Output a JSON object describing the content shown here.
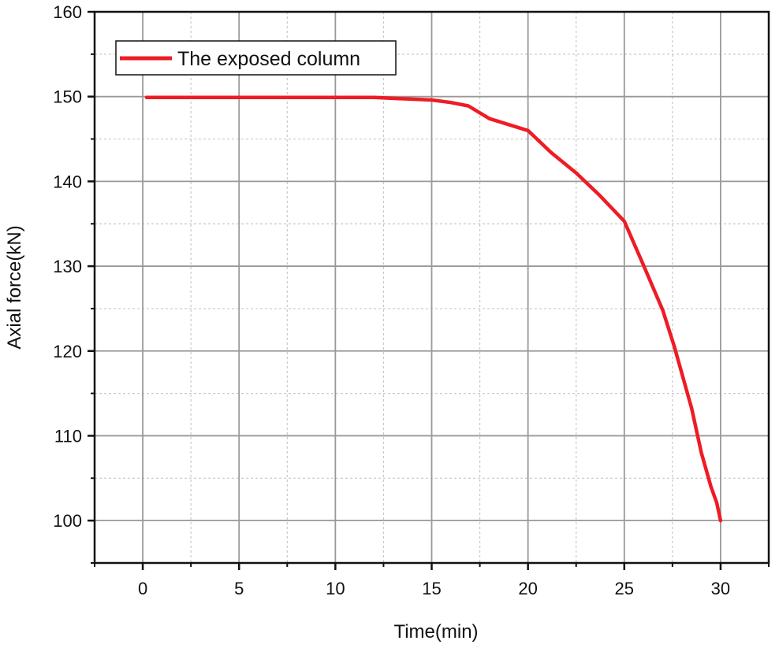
{
  "chart_data": {
    "type": "line",
    "title": "",
    "xlabel": "Time(min)",
    "ylabel": "Axial force(kN)",
    "xlim": [
      -2.5,
      32.5
    ],
    "ylim": [
      95,
      160
    ],
    "xticks": [
      0,
      5,
      10,
      15,
      20,
      25,
      30
    ],
    "yticks": [
      100,
      110,
      120,
      130,
      140,
      150,
      160
    ],
    "grid": true,
    "legend_position": "top-left",
    "series": [
      {
        "name": "The exposed column",
        "color": "#ee1c25",
        "x": [
          0.2,
          5,
          10,
          12,
          15,
          16,
          16.9,
          18,
          20,
          21.2,
          22.5,
          23.7,
          25,
          26,
          27,
          27.6,
          28.5,
          29,
          29.5,
          29.8,
          30
        ],
        "y": [
          149.9,
          149.9,
          149.9,
          149.9,
          149.6,
          149.3,
          148.9,
          147.4,
          146.0,
          143.4,
          141.0,
          138.4,
          135.3,
          130.1,
          124.8,
          120.5,
          113.2,
          108.0,
          104.0,
          102.1,
          100.0
        ]
      }
    ]
  }
}
